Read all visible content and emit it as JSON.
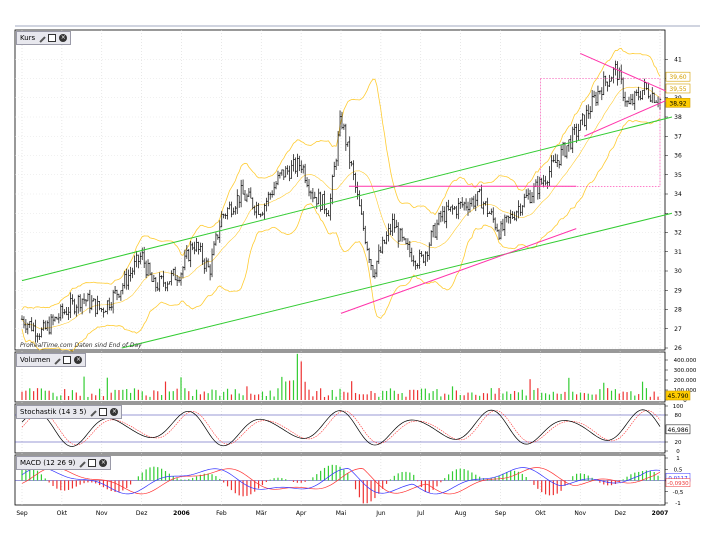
{
  "chart_data": [
    {
      "type": "candlestick",
      "panel": "Kurs",
      "title": "Kurs",
      "watermark": "ProRealTime.com   Daten sind End of Day",
      "ylim": [
        26,
        42
      ],
      "yticks": [
        26,
        27,
        28,
        29,
        30,
        31,
        32,
        33,
        34,
        35,
        36,
        37,
        38,
        39,
        40,
        41
      ],
      "last_price": "38,92",
      "price_tag_2": "39,55",
      "price_tag_3": "39,60",
      "months": [
        "Sep",
        "Okt",
        "Nov",
        "Dez",
        "2006",
        "Feb",
        "Mär",
        "Apr",
        "Mai",
        "Jun",
        "Jul",
        "Aug",
        "Sep",
        "Okt",
        "Nov",
        "Dez",
        "2007"
      ],
      "price_path_months": [
        [
          0,
          27.5
        ],
        [
          0.5,
          26.8
        ],
        [
          1,
          27.8
        ],
        [
          1.5,
          28.6
        ],
        [
          2,
          28.0
        ],
        [
          2.5,
          29.2
        ],
        [
          3,
          30.8
        ],
        [
          3.3,
          29.2
        ],
        [
          3.7,
          29.6
        ],
        [
          4,
          30.0
        ],
        [
          4.3,
          31.5
        ],
        [
          4.7,
          30.0
        ],
        [
          5,
          32.8
        ],
        [
          5.5,
          34.0
        ],
        [
          6,
          33.2
        ],
        [
          6.5,
          35.0
        ],
        [
          7,
          35.6
        ],
        [
          7.3,
          34.0
        ],
        [
          7.7,
          33.2
        ],
        [
          8,
          38.0
        ],
        [
          8.3,
          35.0
        ],
        [
          8.5,
          32.8
        ],
        [
          8.8,
          30.0
        ],
        [
          9.3,
          32.5
        ],
        [
          9.6,
          31.2
        ],
        [
          10,
          30.5
        ],
        [
          10.5,
          32.8
        ],
        [
          11,
          33.4
        ],
        [
          11.5,
          33.8
        ],
        [
          12,
          32.0
        ],
        [
          12.5,
          33.5
        ],
        [
          13,
          34.5
        ],
        [
          13.5,
          36.0
        ],
        [
          14,
          37.5
        ],
        [
          14.5,
          39.5
        ],
        [
          14.9,
          40.5
        ],
        [
          15.2,
          38.5
        ],
        [
          15.6,
          39.5
        ],
        [
          16,
          38.9
        ]
      ],
      "annotations": [
        {
          "type": "line",
          "color": "#33cc33",
          "label": "upper channel",
          "from": [
            0,
            29.5
          ],
          "to": [
            16.3,
            38.0
          ]
        },
        {
          "type": "line",
          "color": "#33cc33",
          "label": "lower channel",
          "from": [
            2.5,
            26.0
          ],
          "to": [
            16.3,
            33.0
          ]
        },
        {
          "type": "line",
          "color": "#ff33aa",
          "label": "support",
          "from": [
            8.0,
            27.8
          ],
          "to": [
            13.9,
            32.2
          ]
        },
        {
          "type": "line",
          "color": "#ff33aa",
          "label": "resistance",
          "from": [
            8.2,
            34.4
          ],
          "to": [
            13.9,
            34.4
          ]
        },
        {
          "type": "line",
          "color": "#ff33aa",
          "label": "triangle upper",
          "from": [
            14.0,
            41.3
          ],
          "to": [
            16.2,
            39.3
          ]
        },
        {
          "type": "line",
          "color": "#ff33aa",
          "label": "triangle lower",
          "from": [
            14.1,
            37.0
          ],
          "to": [
            16.2,
            38.9
          ]
        }
      ]
    },
    {
      "type": "bar",
      "panel": "Volumen",
      "title": "Volumen",
      "ylim": [
        0,
        450000
      ],
      "yticks": [
        "400.000",
        "300.000",
        "200.000",
        "100.000",
        "0"
      ],
      "last_value": "45.790"
    },
    {
      "type": "line",
      "panel": "Stochastik",
      "title": "Stochastik (14 3 5)",
      "ylim": [
        0,
        100
      ],
      "yticks": [
        "100",
        "80",
        "20",
        "0"
      ],
      "levels": [
        80,
        20
      ],
      "last_value": "46,986"
    },
    {
      "type": "line",
      "panel": "MACD",
      "title": "MACD (12 26 9)",
      "ylim": [
        -1,
        1
      ],
      "yticks": [
        "1",
        "0,5",
        "0",
        "-0,5",
        "-1"
      ],
      "value_1": "0,0117",
      "value_2": "-0,0930"
    }
  ],
  "colors": {
    "bollinger": "#ffcc33",
    "channel": "#33cc33",
    "trend": "#ff33aa",
    "vol_up": "#33cc33",
    "vol_down": "#ee3333",
    "stoch_k": "#000000",
    "stoch_d": "#ff3333",
    "macd": "#3333ff",
    "signal": "#ff3333",
    "hist_up": "#33cc33",
    "hist_down": "#ee3333",
    "level_line": "#3333aa",
    "tag_bg": "#ffcc00"
  },
  "icons": [
    "wrench-icon",
    "window-icon",
    "close-icon"
  ]
}
